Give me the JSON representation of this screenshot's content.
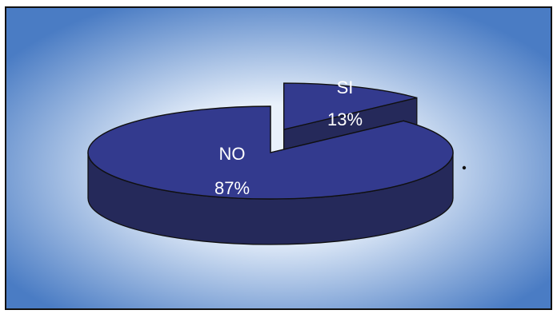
{
  "chart_data": {
    "type": "pie",
    "style": "3d-exploded",
    "labels": [
      "SI",
      "NO"
    ],
    "values": [
      13,
      87
    ],
    "percent_labels": [
      "13%",
      "87%"
    ],
    "exploded": "SI",
    "legend": "none",
    "title": "",
    "colors": {
      "slice_top": "#333a8e",
      "slice_side": "#25295a",
      "outline": "#101010",
      "background_center": "#e9f1fb",
      "background_edge": "#4a7cc4"
    }
  }
}
